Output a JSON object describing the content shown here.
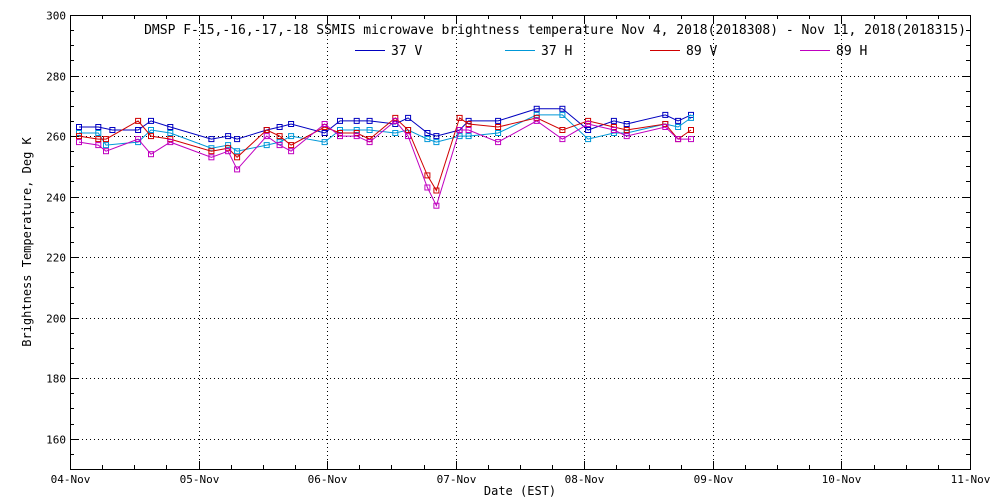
{
  "chart_data": {
    "type": "line",
    "title": "DMSP F-15,-16,-17,-18 SSMIS microwave brightness temperature Nov  4, 2018(2018308) - Nov 11, 2018(2018315)",
    "xlabel": "Date (EST)",
    "ylabel": "Brightness Temperature, Deg K",
    "xlim": [
      0,
      7
    ],
    "ylim": [
      150,
      300
    ],
    "yticks": [
      160,
      180,
      200,
      220,
      240,
      260,
      280,
      300
    ],
    "xticks": [
      {
        "value": 0,
        "label": "04-Nov"
      },
      {
        "value": 1,
        "label": "05-Nov"
      },
      {
        "value": 2,
        "label": "06-Nov"
      },
      {
        "value": 3,
        "label": "07-Nov"
      },
      {
        "value": 4,
        "label": "08-Nov"
      },
      {
        "value": 5,
        "label": "09-Nov"
      },
      {
        "value": 6,
        "label": "10-Nov"
      },
      {
        "value": 7,
        "label": "11-Nov"
      }
    ],
    "grid": true,
    "series": [
      {
        "name": "37 V",
        "color": "#0000c0",
        "x": [
          0.07,
          0.22,
          0.33,
          0.53,
          0.63,
          0.78,
          1.1,
          1.23,
          1.3,
          1.53,
          1.63,
          1.72,
          1.98,
          2.1,
          2.23,
          2.33,
          2.53,
          2.63,
          2.78,
          2.85,
          3.03,
          3.1,
          3.33,
          3.63,
          3.83,
          4.03,
          4.23,
          4.33,
          4.63,
          4.73,
          4.83
        ],
        "y": [
          263,
          263,
          262,
          262,
          265,
          263,
          259,
          260,
          259,
          262,
          263,
          264,
          261,
          265,
          265,
          265,
          264,
          266,
          261,
          260,
          262,
          265,
          265,
          269,
          269,
          262,
          265,
          264,
          267,
          265,
          267
        ]
      },
      {
        "name": "37 H",
        "color": "#0098d8",
        "x": [
          0.07,
          0.22,
          0.28,
          0.53,
          0.63,
          0.78,
          1.1,
          1.23,
          1.3,
          1.53,
          1.63,
          1.72,
          1.98,
          2.1,
          2.23,
          2.33,
          2.53,
          2.63,
          2.78,
          2.85,
          3.03,
          3.1,
          3.33,
          3.63,
          3.83,
          4.03,
          4.23,
          4.33,
          4.63,
          4.73,
          4.83
        ],
        "y": [
          261,
          261,
          257,
          258,
          262,
          261,
          256,
          257,
          255,
          257,
          258,
          260,
          258,
          262,
          262,
          262,
          261,
          262,
          259,
          258,
          260,
          260,
          261,
          267,
          267,
          259,
          261,
          261,
          264,
          263,
          266
        ]
      },
      {
        "name": "89 V",
        "color": "#d00000",
        "x": [
          0.07,
          0.22,
          0.28,
          0.53,
          0.63,
          0.78,
          1.1,
          1.23,
          1.3,
          1.53,
          1.63,
          1.72,
          1.98,
          2.1,
          2.23,
          2.33,
          2.53,
          2.63,
          2.78,
          2.85,
          3.03,
          3.1,
          3.33,
          3.63,
          3.83,
          4.03,
          4.23,
          4.33,
          4.63,
          4.73,
          4.83
        ],
        "y": [
          260,
          259,
          259,
          265,
          260,
          259,
          255,
          256,
          253,
          262,
          260,
          257,
          263,
          261,
          261,
          259,
          266,
          262,
          247,
          242,
          266,
          264,
          263,
          266,
          262,
          265,
          263,
          262,
          264,
          259,
          262
        ]
      },
      {
        "name": "89 H",
        "color": "#c000c0",
        "x": [
          0.07,
          0.22,
          0.28,
          0.53,
          0.63,
          0.78,
          1.1,
          1.23,
          1.3,
          1.53,
          1.63,
          1.72,
          1.98,
          2.1,
          2.23,
          2.33,
          2.53,
          2.63,
          2.78,
          2.85,
          3.03,
          3.1,
          3.33,
          3.63,
          3.83,
          4.03,
          4.23,
          4.33,
          4.63,
          4.73,
          4.83
        ],
        "y": [
          258,
          257,
          255,
          259,
          254,
          258,
          253,
          255,
          249,
          260,
          257,
          255,
          264,
          260,
          260,
          258,
          265,
          260,
          243,
          237,
          262,
          262,
          258,
          265,
          259,
          264,
          262,
          260,
          263,
          259,
          259
        ]
      }
    ]
  }
}
